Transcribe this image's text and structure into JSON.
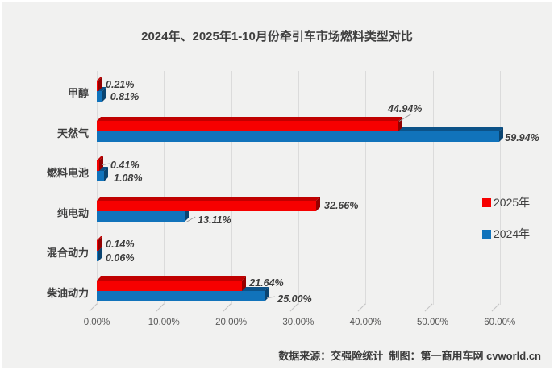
{
  "title": "2024年、2025年1-10月份牵引车市场燃料类型对比",
  "footer": "数据来源：交强险统计  制图：第一商用车网 cvworld.cn",
  "colors": {
    "red_2025": "#f60000",
    "blue_2024": "#1173bb",
    "background": "#f1f1f0",
    "gridline": "#dbdbdb"
  },
  "chart_data": {
    "type": "bar",
    "orientation": "horizontal",
    "title": "2024年、2025年1-10月份牵引车市场燃料类型对比",
    "categories": [
      "甲醇",
      "天然气",
      "燃料电池",
      "纯电动",
      "混合动力",
      "柴油动力"
    ],
    "series": [
      {
        "name": "2025年",
        "color": "#f60000",
        "color_top": "#c00000",
        "color_side": "#940000",
        "values": [
          0.21,
          44.94,
          0.41,
          32.66,
          0.14,
          21.64
        ],
        "labels": [
          "0.21%",
          "44.94%",
          "0.41%",
          "32.66%",
          "0.14%",
          "21.64%"
        ]
      },
      {
        "name": "2024年",
        "color": "#1173bb",
        "color_top": "#0c5288",
        "color_side": "#0a4470",
        "values": [
          0.81,
          59.94,
          1.08,
          13.11,
          0.06,
          25.0
        ],
        "labels": [
          "0.81%",
          "59.94%",
          "1.08%",
          "13.11%",
          "0.06%",
          "25.00%"
        ]
      }
    ],
    "x_ticks": [
      "0.00%",
      "10.00%",
      "20.00%",
      "30.00%",
      "40.00%",
      "50.00%",
      "60.00%"
    ],
    "xlim": [
      0,
      60
    ],
    "grid": true,
    "legend_position": "right",
    "value_labels_style": "bold-italic"
  }
}
